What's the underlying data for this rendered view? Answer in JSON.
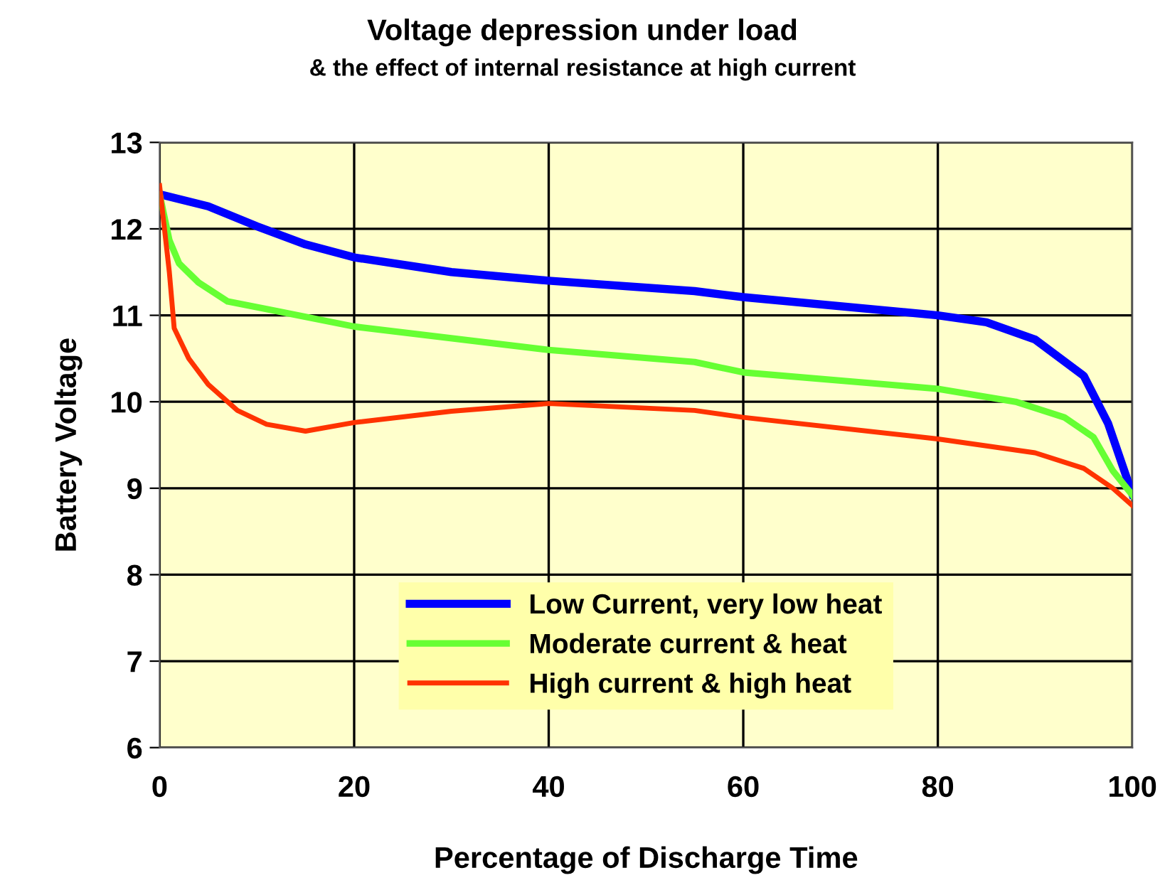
{
  "chart_data": {
    "type": "line",
    "title": "Voltage depression under load",
    "subtitle": "& the effect of internal resistance at high current",
    "xlabel": "Percentage of Discharge Time",
    "ylabel": "Battery Voltage",
    "xlim": [
      0,
      100
    ],
    "xticks": [
      0,
      20,
      40,
      60,
      80,
      100
    ],
    "ylim": [
      6,
      13
    ],
    "yticks": [
      6,
      7,
      8,
      9,
      10,
      11,
      12,
      13
    ],
    "grid": true,
    "legend": "bottom",
    "marker": "none",
    "line_style": "solid",
    "series": [
      {
        "name": "Low Current, very low heat",
        "color": "#0000ff",
        "x": [
          0,
          5,
          10,
          15,
          20,
          30,
          40,
          55,
          60,
          80,
          85,
          90,
          95,
          97.5,
          100
        ],
        "values": [
          12.4,
          12.26,
          12.03,
          11.82,
          11.67,
          11.5,
          11.4,
          11.28,
          11.21,
          11.0,
          10.92,
          10.72,
          10.3,
          9.75,
          8.93
        ]
      },
      {
        "name": "Moderate current & heat",
        "color": "#66ff33",
        "x": [
          0,
          1,
          2,
          4,
          7,
          12,
          20,
          40,
          55,
          60,
          80,
          88,
          93,
          96,
          98,
          100
        ],
        "values": [
          12.4,
          11.87,
          11.6,
          11.38,
          11.16,
          11.05,
          10.87,
          10.6,
          10.46,
          10.34,
          10.15,
          10.0,
          9.82,
          9.59,
          9.2,
          8.92
        ]
      },
      {
        "name": "High current & high heat",
        "color": "#ff3300",
        "x": [
          0,
          1,
          1.5,
          3,
          5,
          8,
          11,
          15,
          20,
          30,
          40,
          55,
          60,
          80,
          90,
          95,
          98,
          100
        ],
        "values": [
          12.5,
          11.5,
          10.85,
          10.5,
          10.2,
          9.9,
          9.74,
          9.66,
          9.76,
          9.89,
          9.98,
          9.9,
          9.82,
          9.57,
          9.41,
          9.23,
          9.0,
          8.8
        ]
      }
    ]
  }
}
